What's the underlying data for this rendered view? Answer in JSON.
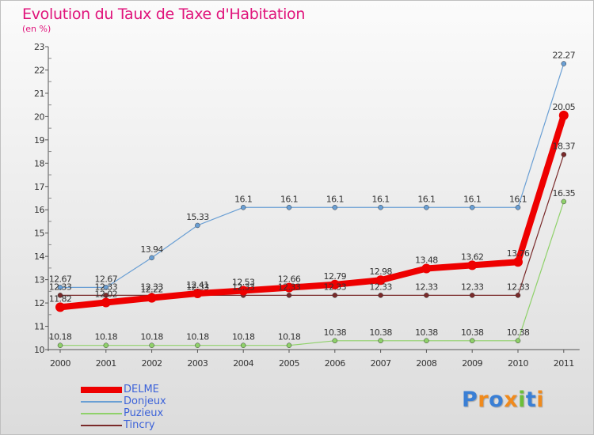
{
  "title": "Evolution du Taux de Taxe d'Habitation",
  "unit_label": "(en %)",
  "logo": {
    "text": "Proxiti",
    "letters": [
      {
        "ch": "P",
        "color": "#3a7fd5"
      },
      {
        "ch": "r",
        "color": "#f08a1c"
      },
      {
        "ch": "o",
        "color": "#3a7fd5"
      },
      {
        "ch": "x",
        "color": "#f08a1c"
      },
      {
        "ch": "i",
        "color": "#6cbf3a"
      },
      {
        "ch": "t",
        "color": "#3a7fd5"
      },
      {
        "ch": "i",
        "color": "#f08a1c"
      }
    ]
  },
  "chart_data": {
    "type": "line",
    "title": "Evolution du Taux de Taxe d'Habitation",
    "ylabel": "(en %)",
    "xlabel": "",
    "x": [
      "2000",
      "2001",
      "2002",
      "2003",
      "2004",
      "2005",
      "2006",
      "2007",
      "2008",
      "2009",
      "2010",
      "2011"
    ],
    "ylim": [
      10,
      23
    ],
    "yticks": [
      "10",
      "11",
      "12",
      "13",
      "14",
      "15",
      "16",
      "17",
      "18",
      "19",
      "20",
      "21",
      "22",
      "23"
    ],
    "grid": false,
    "legend": "bottom-left",
    "series": [
      {
        "name": "DELME",
        "color": "#ee0000",
        "values": [
          11.82,
          12.02,
          12.22,
          12.41,
          12.53,
          12.66,
          12.79,
          12.98,
          13.48,
          13.62,
          13.76,
          20.05
        ],
        "labels": [
          "11.82",
          "12.02",
          "12.22",
          "12.41",
          "12.53",
          "12.66",
          "12.79",
          "12.98",
          "13.48",
          "13.62",
          "13.76",
          "20.05"
        ]
      },
      {
        "name": "Donjeux",
        "color": "#6a9fd4",
        "values": [
          12.67,
          12.67,
          13.94,
          15.33,
          16.1,
          16.1,
          16.1,
          16.1,
          16.1,
          16.1,
          16.1,
          22.27
        ],
        "labels": [
          "12.67",
          "12.67",
          "13.94",
          "15.33",
          "16.1",
          "16.1",
          "16.1",
          "16.1",
          "16.1",
          "16.1",
          "16.1",
          "22.27"
        ]
      },
      {
        "name": "Puzieux",
        "color": "#8fd16a",
        "values": [
          10.18,
          10.18,
          10.18,
          10.18,
          10.18,
          10.18,
          10.38,
          10.38,
          10.38,
          10.38,
          10.38,
          16.35
        ],
        "labels": [
          "10.18",
          "10.18",
          "10.18",
          "10.18",
          "10.18",
          "10.18",
          "10.38",
          "10.38",
          "10.38",
          "10.38",
          "10.38",
          "16.35"
        ]
      },
      {
        "name": "Tincry",
        "color": "#7a2a2a",
        "values": [
          12.33,
          12.33,
          12.33,
          12.33,
          12.33,
          12.33,
          12.33,
          12.33,
          12.33,
          12.33,
          12.33,
          18.37
        ],
        "labels": [
          "12.33",
          "12.33",
          "12.33",
          "12.33",
          "12.33",
          "12.33",
          "12.33",
          "12.33",
          "12.33",
          "12.33",
          "12.33",
          "18.37"
        ]
      }
    ]
  }
}
